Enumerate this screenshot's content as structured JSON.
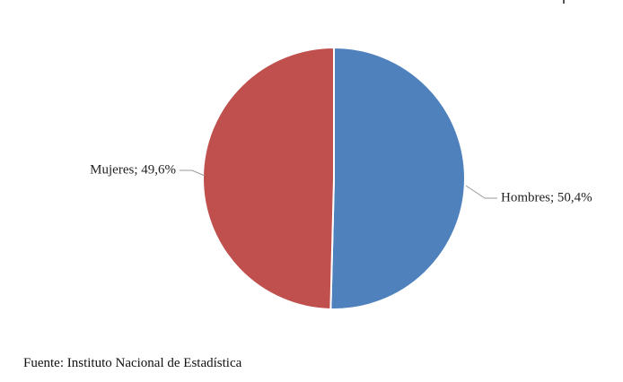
{
  "chart_data": {
    "type": "pie",
    "title": "",
    "categories": [
      "Hombres",
      "Mujeres"
    ],
    "values": [
      50.4,
      49.6
    ],
    "unit": "%",
    "data_labels": [
      "Hombres; 50,4%",
      "Mujeres; 49,6%"
    ],
    "colors": [
      "#4F81BD",
      "#C0504D"
    ],
    "start_angle_deg": 0,
    "direction": "clockwise",
    "legend": "none"
  },
  "footer": {
    "source": "Fuente: Instituto Nacional de Estadística"
  }
}
